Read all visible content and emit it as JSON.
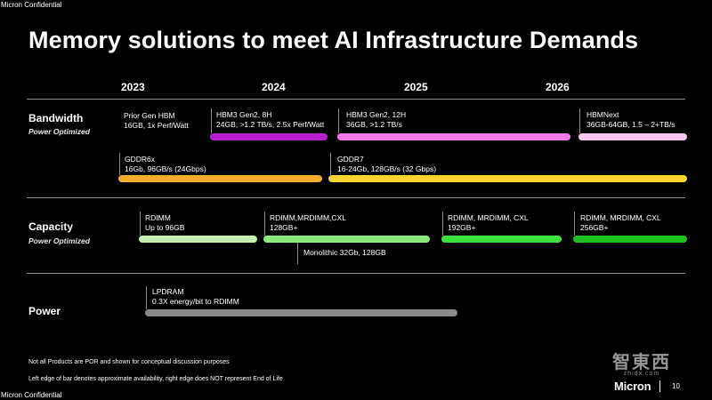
{
  "header": {
    "confidential": "Micron Confidential",
    "title": "Memory solutions to meet AI Infrastructure Demands"
  },
  "years": [
    "2023",
    "2024",
    "2025",
    "2026"
  ],
  "sections": {
    "bandwidth": {
      "label": "Bandwidth",
      "sub": "Power Optimized"
    },
    "capacity": {
      "label": "Capacity",
      "sub": "Power Optimized"
    },
    "power": {
      "label": "Power"
    }
  },
  "items": {
    "prior_hbm": {
      "line1": "Prior Gen HBM",
      "line2": "16GB, 1x Perf/Watt"
    },
    "hbm3_gen2_8h": {
      "line1": "HBM3 Gen2, 8H",
      "line2": "24GB, >1.2 TB/s, 2.5x Perf/Watt",
      "color": "#b51fd0"
    },
    "hbm3_gen2_12h": {
      "line1": "HBM3 Gen2, 12H",
      "line2": "36GB, >1.2 TB/s",
      "color": "#f07be6"
    },
    "hbmnext": {
      "line1": "HBMNext",
      "line2": "36GB-64GB, 1.5 – 2+TB/s",
      "color": "#f7c9ef"
    },
    "gddr6x": {
      "line1": "GDDR6x",
      "line2": "16Gb, 96GB/s (24Gbps)",
      "color": "#f4ac2c"
    },
    "gddr7": {
      "line1": "GDDR7",
      "line2": "16-24Gb, 128GB/s (32 Gbps)",
      "color": "#f6d531"
    },
    "rdimm_96": {
      "line1": "RDIMM",
      "line2": "Up to 96GB",
      "color": "#c6f0b2"
    },
    "rdimm_cxl_128": {
      "line1": "RDIMM,MRDIMM,CXL",
      "line2": "128GB+",
      "color": "#8be97a"
    },
    "monolithic": {
      "line1": "Monolithic 32Gb, 128GB"
    },
    "rdimm_192": {
      "line1": "RDIMM, MRDIMM, CXL",
      "line2": "192GB+",
      "color": "#3fe23d"
    },
    "rdimm_256": {
      "line1": "RDIMM, MRDIMM, CXL",
      "line2": "256GB+",
      "color": "#1fbf1f"
    },
    "lpdram": {
      "line1": "LPDRAM",
      "line2": "0.3X energy/bit to RDIMM",
      "color": "#8a8a8a"
    }
  },
  "notes": [
    "Not all Products are POR and shown for conceptual discussion purposes",
    "Left edge of bar denotes approximate availability, right edge does NOT represent End of Life"
  ],
  "footer": {
    "logo": "Micron",
    "page": "10",
    "confidential": "Micron Confidential"
  },
  "watermark": {
    "main": "智東西",
    "sub": "zhidx.com"
  }
}
